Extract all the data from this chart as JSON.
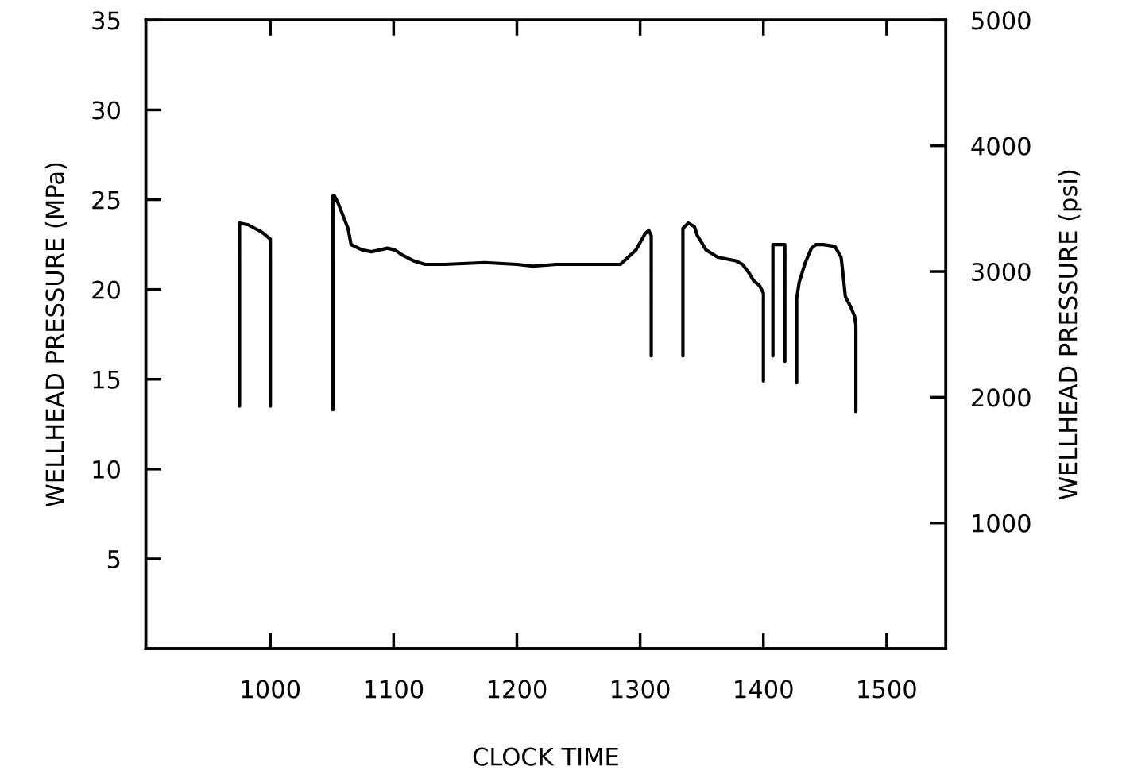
{
  "chart_data": {
    "type": "line",
    "xlabel": "CLOCK TIME",
    "ylabel": "WELLHEAD PRESSURE (MPa)",
    "y2label": "WELLHEAD PRESSURE (psi)",
    "xlim": [
      899,
      1548
    ],
    "xticks": [
      1000,
      1100,
      1200,
      1300,
      1400,
      1500
    ],
    "ylim": [
      0,
      35
    ],
    "yticks": [
      5,
      10,
      15,
      20,
      25,
      30,
      35
    ],
    "y2lim": [
      0,
      5000
    ],
    "y2ticks": [
      1000,
      2000,
      3000,
      4000,
      5000
    ],
    "grid": false,
    "marker": "none",
    "line_style": "solid",
    "series": [
      {
        "color": "#000000",
        "x": [
          975,
          975,
          982,
          993,
          1000,
          1000,
          null,
          1050.7,
          1050.7,
          1052,
          1055,
          1063,
          1065.5,
          1074.5,
          1082,
          1095,
          1101,
          1107.5,
          1116,
          1125.5,
          1141.5,
          1174,
          1200,
          1213,
          1232,
          1258,
          1271,
          1284,
          1296.6,
          1304,
          1307,
          1309,
          1309,
          null,
          1334.7,
          1334.7,
          1339,
          1344,
          1346.4,
          1353.5,
          1363,
          1377.5,
          1383,
          1388.5,
          1392,
          1397,
          1400,
          1400,
          null,
          1407.7,
          1407.7,
          1412,
          1417.4,
          1417.4,
          null,
          1427,
          1427,
          1429,
          1434,
          1439,
          1442.5,
          1448.5,
          1458,
          1463,
          1464.5,
          1466.5,
          1471,
          1474,
          1475,
          1475
        ],
        "values": [
          13.5,
          23.7,
          23.6,
          23.2,
          22.8,
          13.5,
          null,
          13.3,
          25.2,
          25.2,
          24.8,
          23.4,
          22.5,
          22.2,
          22.1,
          22.3,
          22.2,
          21.9,
          21.6,
          21.4,
          21.4,
          21.5,
          21.4,
          21.3,
          21.4,
          21.4,
          21.4,
          21.4,
          22.2,
          23.1,
          23.3,
          23.0,
          16.3,
          null,
          16.3,
          23.4,
          23.7,
          23.5,
          23.0,
          22.2,
          21.8,
          21.6,
          21.4,
          20.9,
          20.5,
          20.2,
          19.8,
          14.9,
          null,
          16.3,
          22.5,
          22.5,
          22.5,
          16.0,
          null,
          14.8,
          19.5,
          20.4,
          21.5,
          22.3,
          22.5,
          22.5,
          22.4,
          21.8,
          20.9,
          19.6,
          19.0,
          18.5,
          18.0,
          13.2
        ]
      }
    ]
  }
}
